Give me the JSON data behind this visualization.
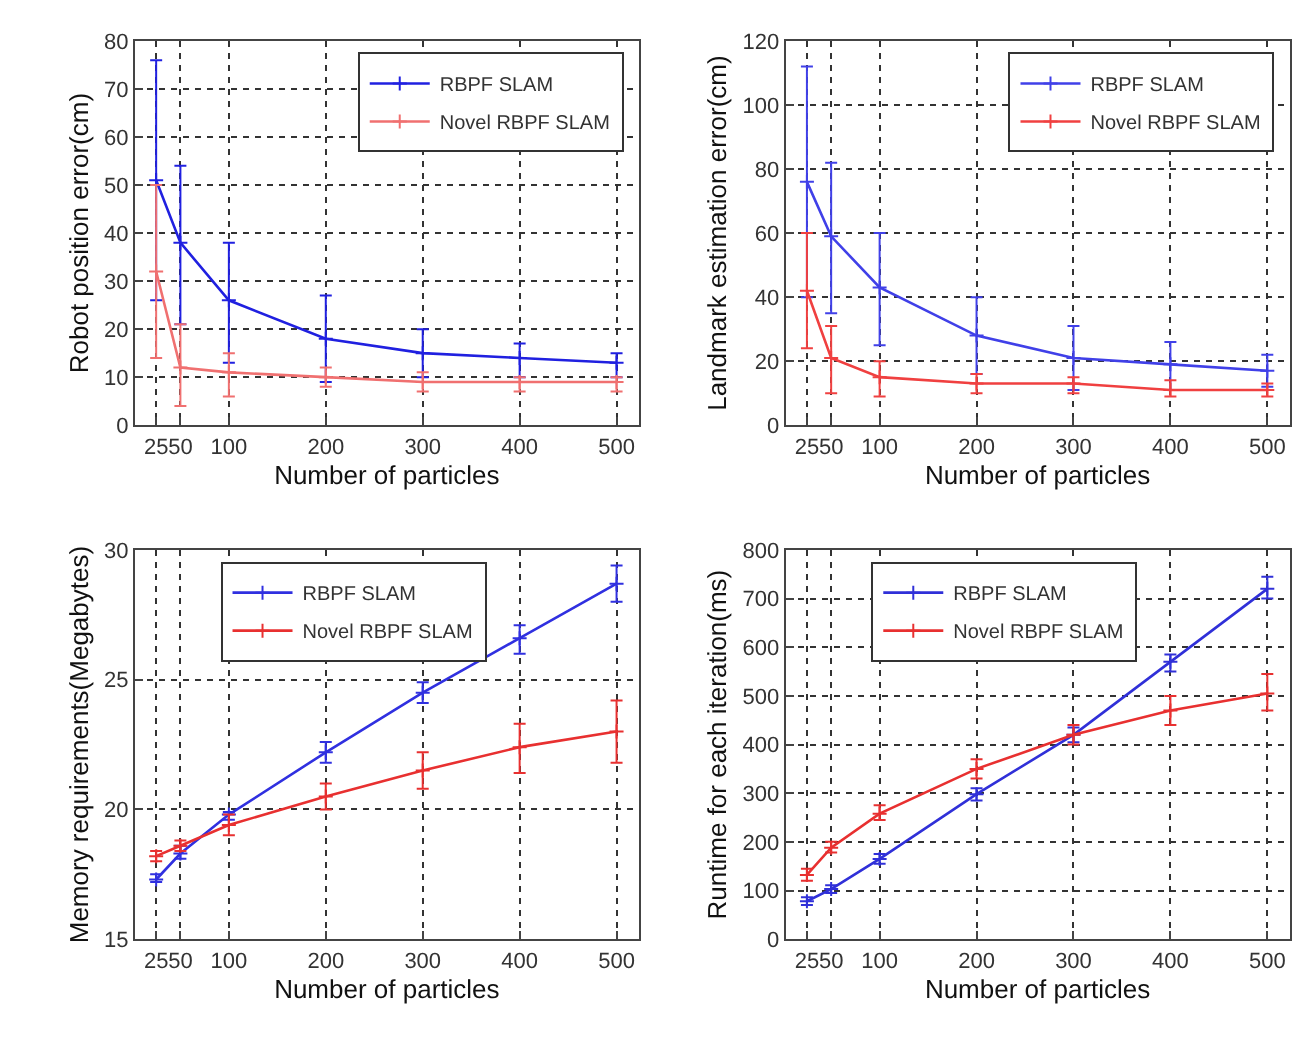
{
  "chart_data": [
    {
      "type": "line",
      "xlabel": "Number of particles",
      "ylabel": "Robot position error(cm)",
      "x": [
        25,
        50,
        100,
        200,
        300,
        400,
        500
      ],
      "xlim": [
        3,
        523
      ],
      "xticks": [
        25,
        50,
        100,
        200,
        300,
        400,
        500
      ],
      "ylim": [
        0,
        80
      ],
      "yticks": [
        0,
        10,
        20,
        30,
        40,
        50,
        60,
        70,
        80
      ],
      "grid": true,
      "legend": "top right",
      "marker": "cross",
      "series": [
        {
          "name": "RBPF SLAM",
          "color": "#2020e0",
          "values": [
            51,
            38,
            26,
            18,
            15,
            14,
            13
          ],
          "errors": [
            [
              26,
              76
            ],
            [
              21,
              54
            ],
            [
              13,
              38
            ],
            [
              9,
              27
            ],
            [
              10,
              20
            ],
            [
              10,
              17
            ],
            [
              10,
              15
            ]
          ]
        },
        {
          "name": "Novel RBPF SLAM",
          "color": "#f07070",
          "values": [
            32,
            12,
            11,
            10,
            9,
            9,
            9
          ],
          "errors": [
            [
              14,
              50
            ],
            [
              4,
              21
            ],
            [
              6,
              15
            ],
            [
              8,
              12
            ],
            [
              7,
              11
            ],
            [
              7,
              10
            ],
            [
              7,
              10
            ]
          ]
        }
      ]
    },
    {
      "type": "line",
      "xlabel": "Number of particles",
      "ylabel": "Landmark estimation error(cm)",
      "x": [
        25,
        50,
        100,
        200,
        300,
        400,
        500
      ],
      "xlim": [
        3,
        523
      ],
      "xticks": [
        25,
        50,
        100,
        200,
        300,
        400,
        500
      ],
      "ylim": [
        0,
        120
      ],
      "yticks": [
        0,
        20,
        40,
        60,
        80,
        100,
        120
      ],
      "grid": true,
      "legend": "top right",
      "marker": "cross",
      "series": [
        {
          "name": "RBPF SLAM",
          "color": "#4040e8",
          "values": [
            76,
            59,
            43,
            28,
            21,
            19,
            17
          ],
          "errors": [
            [
              40,
              112
            ],
            [
              35,
              82
            ],
            [
              25,
              60
            ],
            [
              16,
              40
            ],
            [
              11,
              31
            ],
            [
              11,
              26
            ],
            [
              12,
              22
            ]
          ]
        },
        {
          "name": "Novel RBPF SLAM",
          "color": "#f04040",
          "values": [
            42,
            21,
            15,
            13,
            13,
            11,
            11
          ],
          "errors": [
            [
              24,
              60
            ],
            [
              10,
              31
            ],
            [
              9,
              20
            ],
            [
              10,
              16
            ],
            [
              10,
              15
            ],
            [
              9,
              14
            ],
            [
              9,
              13
            ]
          ]
        }
      ]
    },
    {
      "type": "line",
      "xlabel": "Number of particles",
      "ylabel": "Memory requirements(Megabytes)",
      "x": [
        25,
        50,
        100,
        200,
        300,
        400,
        500
      ],
      "xlim": [
        3,
        523
      ],
      "xticks": [
        25,
        50,
        100,
        200,
        300,
        400,
        500
      ],
      "ylim": [
        15,
        30
      ],
      "yticks": [
        15,
        20,
        25,
        30
      ],
      "grid": true,
      "legend": "top left",
      "marker": "cross",
      "series": [
        {
          "name": "RBPF SLAM",
          "color": "#3030e0",
          "values": [
            17.3,
            18.3,
            19.8,
            22.2,
            24.5,
            26.6,
            28.7
          ],
          "errors": [
            [
              17.2,
              17.5
            ],
            [
              18.1,
              18.6
            ],
            [
              19.6,
              19.9
            ],
            [
              21.8,
              22.6
            ],
            [
              24.1,
              24.9
            ],
            [
              26.0,
              27.1
            ],
            [
              28.0,
              29.4
            ]
          ]
        },
        {
          "name": "Novel RBPF SLAM",
          "color": "#e83030",
          "values": [
            18.2,
            18.6,
            19.4,
            20.5,
            21.5,
            22.4,
            23.0
          ],
          "errors": [
            [
              18.0,
              18.4
            ],
            [
              18.4,
              18.8
            ],
            [
              19.0,
              19.8
            ],
            [
              20.0,
              21.0
            ],
            [
              20.8,
              22.2
            ],
            [
              21.4,
              23.3
            ],
            [
              21.8,
              24.2
            ]
          ]
        }
      ]
    },
    {
      "type": "line",
      "xlabel": "Number of particles",
      "ylabel": "Runtime for each iteration(ms)",
      "x": [
        25,
        50,
        100,
        200,
        300,
        400,
        500
      ],
      "xlim": [
        3,
        523
      ],
      "xticks": [
        25,
        50,
        100,
        200,
        300,
        400,
        500
      ],
      "ylim": [
        0,
        800
      ],
      "yticks": [
        0,
        100,
        200,
        300,
        400,
        500,
        600,
        700,
        800
      ],
      "grid": true,
      "legend": "top left",
      "marker": "cross",
      "series": [
        {
          "name": "RBPF SLAM",
          "color": "#3030d8",
          "values": [
            78,
            103,
            165,
            298,
            420,
            570,
            720
          ],
          "errors": [
            [
              70,
              86
            ],
            [
              95,
              111
            ],
            [
              155,
              175
            ],
            [
              285,
              310
            ],
            [
              405,
              435
            ],
            [
              550,
              585
            ],
            [
              700,
              745
            ]
          ]
        },
        {
          "name": "Novel RBPF SLAM",
          "color": "#e83030",
          "values": [
            132,
            188,
            258,
            350,
            420,
            470,
            505
          ],
          "errors": [
            [
              120,
              145
            ],
            [
              178,
              200
            ],
            [
              245,
              275
            ],
            [
              330,
              370
            ],
            [
              400,
              440
            ],
            [
              440,
              500
            ],
            [
              470,
              545
            ]
          ]
        }
      ]
    }
  ]
}
